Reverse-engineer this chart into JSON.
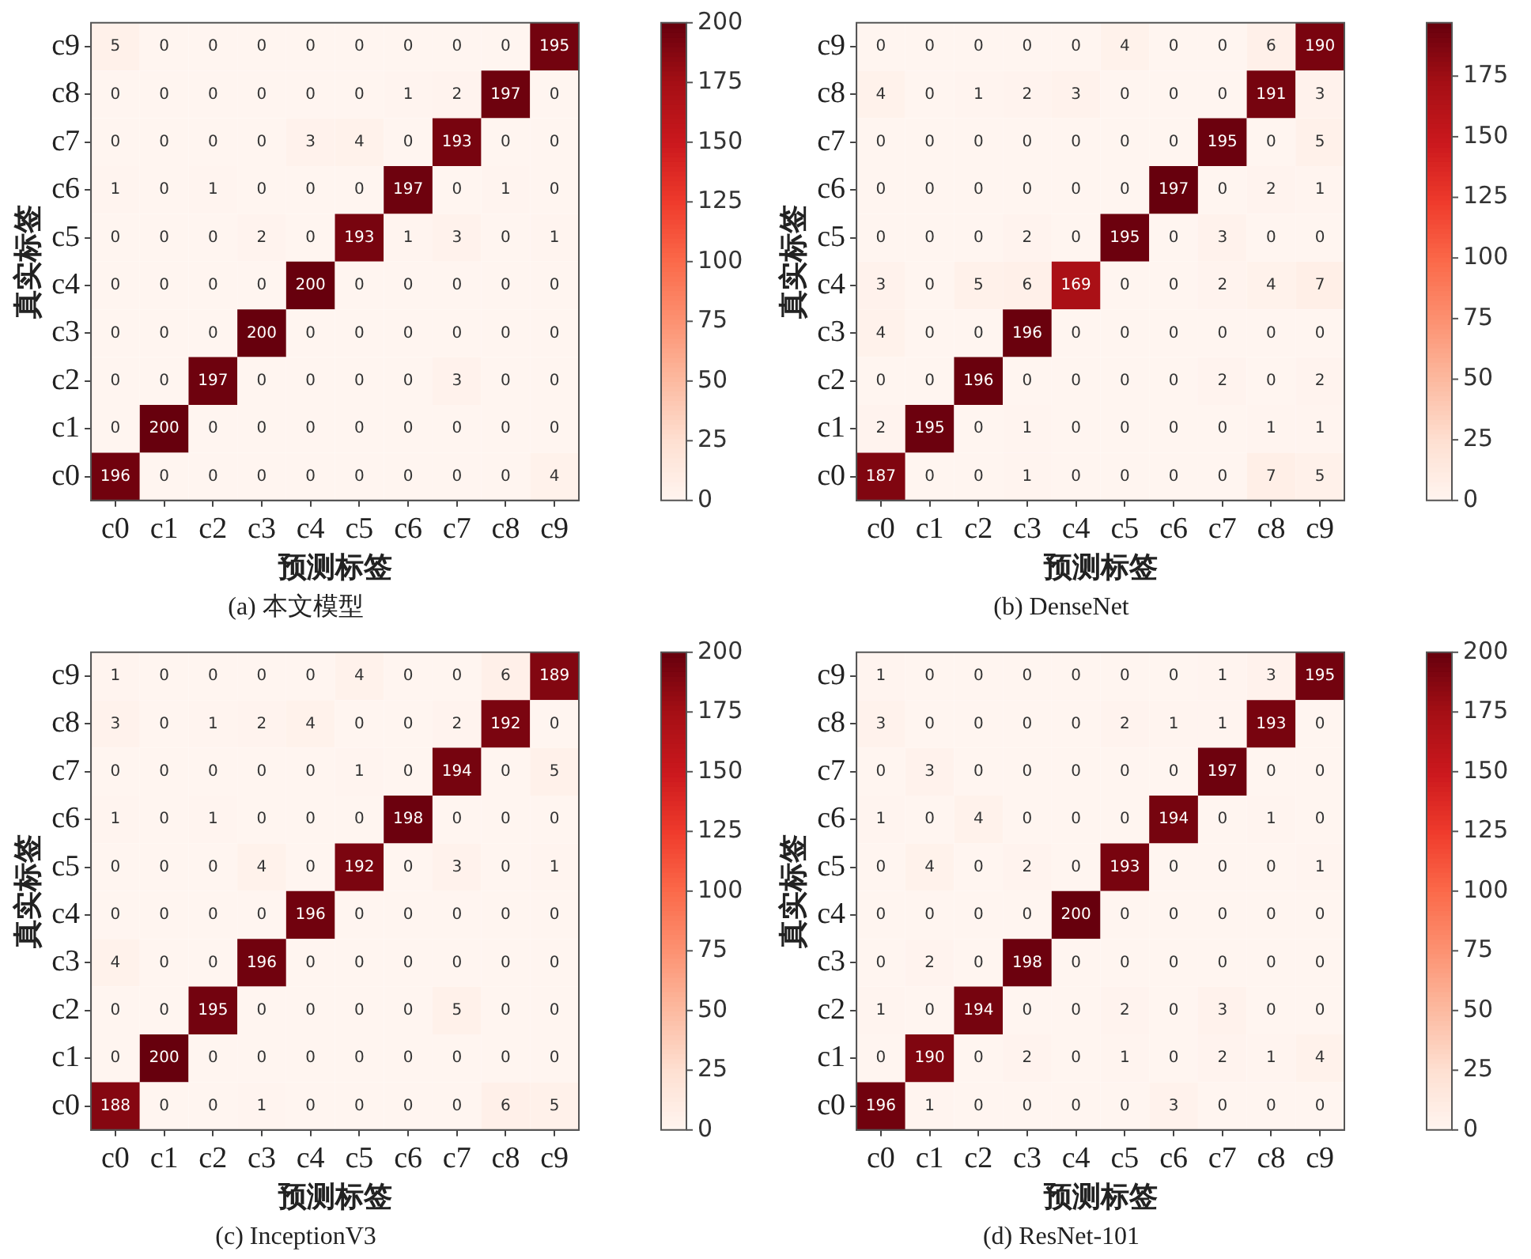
{
  "chart_data": [
    {
      "type": "heatmap",
      "title": "(a) 本文模型",
      "xlabel": "预测标签",
      "ylabel": "真实标签",
      "categories": [
        "c0",
        "c1",
        "c2",
        "c3",
        "c4",
        "c5",
        "c6",
        "c7",
        "c8",
        "c9"
      ],
      "y_categories": [
        "c9",
        "c8",
        "c7",
        "c6",
        "c5",
        "c4",
        "c3",
        "c2",
        "c1",
        "c0"
      ],
      "cells": [
        [
          5,
          0,
          0,
          0,
          0,
          0,
          0,
          0,
          0,
          195
        ],
        [
          0,
          0,
          0,
          0,
          0,
          0,
          1,
          2,
          197,
          0
        ],
        [
          0,
          0,
          0,
          0,
          3,
          4,
          0,
          193,
          0,
          0
        ],
        [
          1,
          0,
          1,
          0,
          0,
          0,
          197,
          0,
          1,
          0
        ],
        [
          0,
          0,
          0,
          2,
          0,
          193,
          1,
          3,
          0,
          1
        ],
        [
          0,
          0,
          0,
          0,
          200,
          0,
          0,
          0,
          0,
          0
        ],
        [
          0,
          0,
          0,
          200,
          0,
          0,
          0,
          0,
          0,
          0
        ],
        [
          0,
          0,
          197,
          0,
          0,
          0,
          0,
          3,
          0,
          0
        ],
        [
          0,
          200,
          0,
          0,
          0,
          0,
          0,
          0,
          0,
          0
        ],
        [
          196,
          0,
          0,
          0,
          0,
          0,
          0,
          0,
          0,
          4
        ]
      ],
      "clim": [
        0,
        200
      ],
      "cticks": [
        0,
        25,
        50,
        75,
        100,
        125,
        150,
        175,
        200
      ],
      "data_labels": true
    },
    {
      "type": "heatmap",
      "title": "(b) DenseNet",
      "xlabel": "预测标签",
      "ylabel": "真实标签",
      "categories": [
        "c0",
        "c1",
        "c2",
        "c3",
        "c4",
        "c5",
        "c6",
        "c7",
        "c8",
        "c9"
      ],
      "y_categories": [
        "c9",
        "c8",
        "c7",
        "c6",
        "c5",
        "c4",
        "c3",
        "c2",
        "c1",
        "c0"
      ],
      "cells": [
        [
          0,
          0,
          0,
          0,
          0,
          4,
          0,
          0,
          6,
          190
        ],
        [
          4,
          0,
          1,
          2,
          3,
          0,
          0,
          0,
          191,
          3
        ],
        [
          0,
          0,
          0,
          0,
          0,
          0,
          0,
          195,
          0,
          5
        ],
        [
          0,
          0,
          0,
          0,
          0,
          0,
          197,
          0,
          2,
          1
        ],
        [
          0,
          0,
          0,
          2,
          0,
          195,
          0,
          3,
          0,
          0
        ],
        [
          3,
          0,
          5,
          6,
          169,
          0,
          0,
          2,
          4,
          7
        ],
        [
          4,
          0,
          0,
          196,
          0,
          0,
          0,
          0,
          0,
          0
        ],
        [
          0,
          0,
          196,
          0,
          0,
          0,
          0,
          2,
          0,
          2
        ],
        [
          2,
          195,
          0,
          1,
          0,
          0,
          0,
          0,
          1,
          1
        ],
        [
          187,
          0,
          0,
          1,
          0,
          0,
          0,
          0,
          7,
          5
        ]
      ],
      "clim": [
        0,
        197
      ],
      "cticks": [
        0,
        25,
        50,
        75,
        100,
        125,
        150,
        175
      ],
      "data_labels": true
    },
    {
      "type": "heatmap",
      "title": "(c) InceptionV3",
      "xlabel": "预测标签",
      "ylabel": "真实标签",
      "categories": [
        "c0",
        "c1",
        "c2",
        "c3",
        "c4",
        "c5",
        "c6",
        "c7",
        "c8",
        "c9"
      ],
      "y_categories": [
        "c9",
        "c8",
        "c7",
        "c6",
        "c5",
        "c4",
        "c3",
        "c2",
        "c1",
        "c0"
      ],
      "cells": [
        [
          1,
          0,
          0,
          0,
          0,
          4,
          0,
          0,
          6,
          189
        ],
        [
          3,
          0,
          1,
          2,
          4,
          0,
          0,
          2,
          192,
          0
        ],
        [
          0,
          0,
          0,
          0,
          0,
          1,
          0,
          194,
          0,
          5
        ],
        [
          1,
          0,
          1,
          0,
          0,
          0,
          198,
          0,
          0,
          0
        ],
        [
          0,
          0,
          0,
          4,
          0,
          192,
          0,
          3,
          0,
          1
        ],
        [
          0,
          0,
          0,
          0,
          196,
          0,
          0,
          0,
          0,
          0
        ],
        [
          4,
          0,
          0,
          196,
          0,
          0,
          0,
          0,
          0,
          0
        ],
        [
          0,
          0,
          195,
          0,
          0,
          0,
          0,
          5,
          0,
          0
        ],
        [
          0,
          200,
          0,
          0,
          0,
          0,
          0,
          0,
          0,
          0
        ],
        [
          188,
          0,
          0,
          1,
          0,
          0,
          0,
          0,
          6,
          5
        ]
      ],
      "clim": [
        0,
        200
      ],
      "cticks": [
        0,
        25,
        50,
        75,
        100,
        125,
        150,
        175,
        200
      ],
      "data_labels": true
    },
    {
      "type": "heatmap",
      "title": "(d) ResNet-101",
      "xlabel": "预测标签",
      "ylabel": "真实标签",
      "categories": [
        "c0",
        "c1",
        "c2",
        "c3",
        "c4",
        "c5",
        "c6",
        "c7",
        "c8",
        "c9"
      ],
      "y_categories": [
        "c9",
        "c8",
        "c7",
        "c6",
        "c5",
        "c4",
        "c3",
        "c2",
        "c1",
        "c0"
      ],
      "cells": [
        [
          1,
          0,
          0,
          0,
          0,
          0,
          0,
          1,
          3,
          195
        ],
        [
          3,
          0,
          0,
          0,
          0,
          2,
          1,
          1,
          193,
          0
        ],
        [
          0,
          3,
          0,
          0,
          0,
          0,
          0,
          197,
          0,
          0
        ],
        [
          1,
          0,
          4,
          0,
          0,
          0,
          194,
          0,
          1,
          0
        ],
        [
          0,
          4,
          0,
          2,
          0,
          193,
          0,
          0,
          0,
          1
        ],
        [
          0,
          0,
          0,
          0,
          200,
          0,
          0,
          0,
          0,
          0
        ],
        [
          0,
          2,
          0,
          198,
          0,
          0,
          0,
          0,
          0,
          0
        ],
        [
          1,
          0,
          194,
          0,
          0,
          2,
          0,
          3,
          0,
          0
        ],
        [
          0,
          190,
          0,
          2,
          0,
          1,
          0,
          2,
          1,
          4
        ],
        [
          196,
          1,
          0,
          0,
          0,
          0,
          3,
          0,
          0,
          0
        ]
      ],
      "clim": [
        0,
        200
      ],
      "cticks": [
        0,
        25,
        50,
        75,
        100,
        125,
        150,
        175,
        200
      ],
      "data_labels": true
    }
  ]
}
